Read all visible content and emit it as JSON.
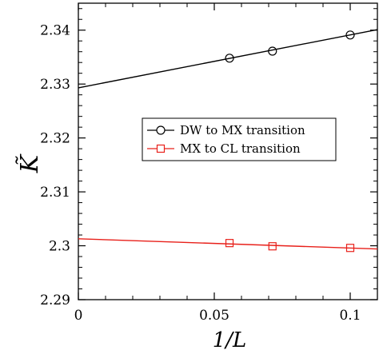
{
  "chart_data": {
    "type": "scatter",
    "title": "",
    "xlabel": "1/L",
    "ylabel": "K̃",
    "xlim": [
      0,
      0.11
    ],
    "ylim": [
      2.29,
      2.345
    ],
    "xticks": [
      0,
      0.05,
      0.1
    ],
    "xtick_labels": [
      "0",
      "0.05",
      "0.1"
    ],
    "yticks": [
      2.29,
      2.3,
      2.31,
      2.32,
      2.33,
      2.34
    ],
    "ytick_labels": [
      "2.29",
      "2.3",
      "2.31",
      "2.32",
      "2.33",
      "2.34"
    ],
    "grid": false,
    "legend_position": "center-right",
    "series": [
      {
        "name": "DW to MX transition",
        "marker": "circle",
        "color": "#000000",
        "x": [
          0.0556,
          0.0714,
          0.1
        ],
        "y": [
          2.3348,
          2.3361,
          2.3391
        ],
        "fit_line": {
          "x": [
            0,
            0.11
          ],
          "y": [
            2.3293,
            2.3401
          ]
        }
      },
      {
        "name": "MX to CL transition",
        "marker": "square",
        "color": "#e8201a",
        "x": [
          0.0556,
          0.0714,
          0.1
        ],
        "y": [
          2.3005,
          2.2999,
          2.2996
        ],
        "fit_line": {
          "x": [
            0,
            0.11
          ],
          "y": [
            2.3013,
            2.2994
          ]
        }
      }
    ]
  }
}
